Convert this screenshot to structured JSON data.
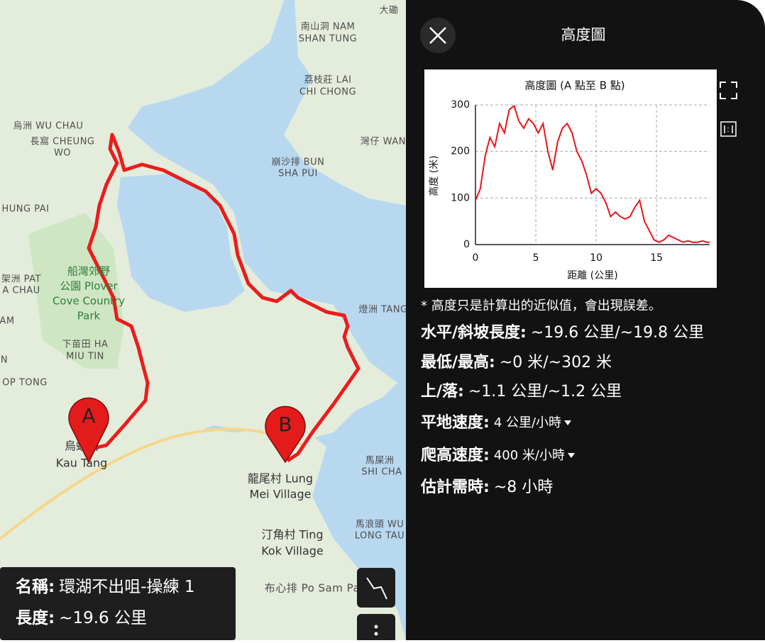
{
  "map": {
    "labels": [
      "大磡",
      "南山洞 NAM",
      "SHAN TUNG",
      "荔枝莊 LAI",
      "CHI CHONG",
      "烏洲 WU CHAU",
      "長窩 CHEUNG",
      "WO",
      "灣仔 WAN",
      "崩沙排 BUN",
      "SHA PUI",
      "HUNG PAI",
      "架洲 PAT",
      "A CHAU",
      "船灣郊野",
      "公園 Plover",
      "Cove Country",
      "Park",
      "燈洲 TANG",
      "AM",
      "下苗田 HA",
      "MIU TIN",
      "N",
      "OP TONG",
      "烏蛟騰",
      "Kau Tang",
      "龍尾村 Lung",
      "Mei Village",
      "馬屎洲",
      "SHI CHA",
      "汀角村 Ting",
      "Kok Village",
      "馬浪頭 WU",
      "LONG TAU",
      "布心排 Po Sam Pa"
    ],
    "markers": [
      "A",
      "B"
    ],
    "info": {
      "name_label": "名稱:",
      "name": "環湖不出咀-操練 1",
      "length_label": "長度:",
      "length": "~19.6 公里"
    }
  },
  "panel": {
    "title": "高度圖",
    "note": "* 高度只是計算出的近似值，會出現誤差。",
    "stats": [
      {
        "label": "水平/斜坡長度:",
        "value": "~19.6 公里/~19.8 公里"
      },
      {
        "label": "最低/最高:",
        "value": "~0 米/~302 米"
      },
      {
        "label": "上/落:",
        "value": "~1.1 公里/~1.2 公里"
      },
      {
        "label": "平地速度:",
        "value": "4 公里/小時"
      },
      {
        "label": "爬高速度:",
        "value": "400 米/小時"
      },
      {
        "label": "估計需時:",
        "value": "~8 小時"
      }
    ]
  },
  "chart_data": {
    "type": "line",
    "title": "高度圖 (A 點至 B 點)",
    "x_label": "距離 (公里)",
    "y_label": "高度 (米)",
    "color": "#e8151b",
    "grid": true,
    "x": [
      0,
      0.4,
      0.8,
      1.2,
      1.6,
      2,
      2.4,
      2.8,
      3.2,
      3.6,
      4,
      4.4,
      4.8,
      5.2,
      5.6,
      6,
      6.4,
      6.8,
      7.2,
      7.6,
      8,
      8.4,
      8.8,
      9.2,
      9.6,
      10,
      10.4,
      10.8,
      11.2,
      11.6,
      12,
      12.4,
      12.8,
      13.2,
      13.6,
      14,
      14.4,
      14.8,
      15.2,
      15.6,
      16,
      16.4,
      16.8,
      17.2,
      17.6,
      18,
      18.4,
      18.8,
      19.2,
      19.4
    ],
    "values": [
      95,
      120,
      190,
      230,
      210,
      260,
      240,
      290,
      298,
      265,
      250,
      270,
      260,
      240,
      260,
      200,
      160,
      220,
      250,
      260,
      240,
      200,
      180,
      150,
      110,
      120,
      110,
      90,
      60,
      70,
      60,
      55,
      60,
      80,
      95,
      50,
      30,
      10,
      5,
      10,
      20,
      15,
      10,
      5,
      8,
      5,
      5,
      8,
      5,
      5
    ],
    "xlim": [
      0,
      19.4
    ],
    "ylim": [
      0,
      300
    ],
    "xticks": [
      0,
      5,
      10,
      15
    ],
    "yticks": [
      0,
      100,
      200,
      300
    ]
  }
}
